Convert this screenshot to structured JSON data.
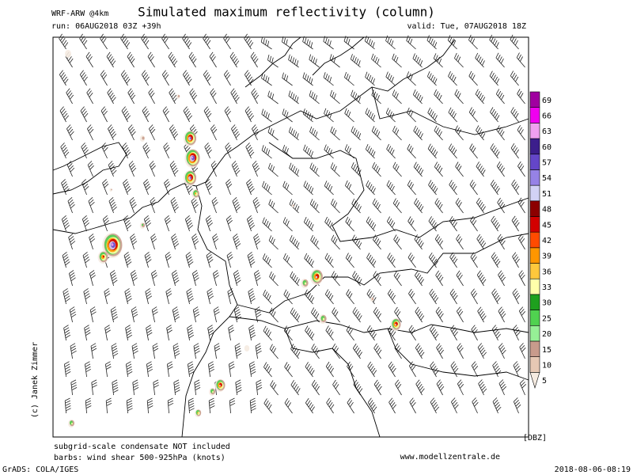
{
  "header": {
    "model": "WRF-ARW @4km",
    "title": "Simulated maximum reflectivity (column)",
    "run": "run: 06AUG2018 03Z +39h",
    "valid": "valid: Tue, 07AUG2018 18Z"
  },
  "colorbar": {
    "unit": "[DBZ]",
    "ticks": [
      5,
      10,
      15,
      20,
      25,
      30,
      33,
      36,
      39,
      42,
      45,
      48,
      51,
      54,
      57,
      60,
      63,
      66,
      69
    ],
    "colors": [
      "#f5ebe1",
      "#e6c8b4",
      "#c89b8c",
      "#96f096",
      "#50d250",
      "#1ea01e",
      "#ffffaa",
      "#ffc83c",
      "#ff9600",
      "#ff4b00",
      "#d20000",
      "#8c0000",
      "#d2d2f5",
      "#9682e6",
      "#6446c8",
      "#3c1e8c",
      "#f0a0f0",
      "#f000f0",
      "#a000a0"
    ]
  },
  "credit": "(c) Janek Zimmer",
  "footer": {
    "note1": "subgrid-scale condensate NOT included",
    "note2": "barbs: wind shear 500-925hPa (knots)",
    "website": "www.modellzentrale.de",
    "software": "GrADS: COLA/IGES",
    "timestamp": "2018-08-06-08:19"
  }
}
